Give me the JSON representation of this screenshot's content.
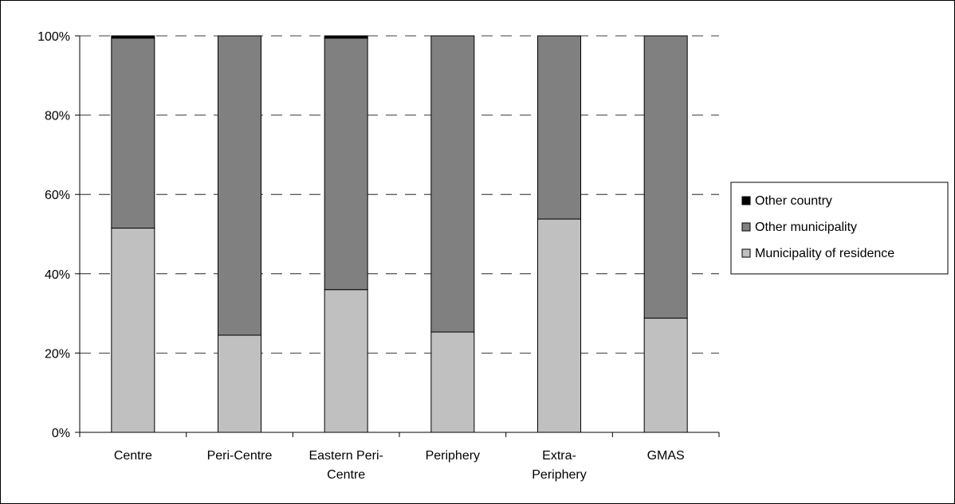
{
  "chart_data": {
    "type": "bar",
    "stacked": true,
    "normalized": true,
    "categories": [
      "Centre",
      "Peri-Centre",
      "Eastern Peri-Centre",
      "Periphery",
      "Extra-Periphery",
      "GMAS"
    ],
    "category_lines": [
      [
        "Centre"
      ],
      [
        "Peri-Centre"
      ],
      [
        "Eastern Peri-",
        "Centre"
      ],
      [
        "Periphery"
      ],
      [
        "Extra-",
        "Periphery"
      ],
      [
        "GMAS"
      ]
    ],
    "series": [
      {
        "name": "Municipality of residence",
        "color": "#c0c0c0",
        "values": [
          51.5,
          24.5,
          36.0,
          25.3,
          53.8,
          28.8
        ]
      },
      {
        "name": "Other municipality",
        "color": "#808080",
        "values": [
          47.9,
          75.5,
          63.4,
          74.7,
          46.2,
          71.2
        ]
      },
      {
        "name": "Other country",
        "color": "#000000",
        "values": [
          0.6,
          0.0,
          0.6,
          0.0,
          0.0,
          0.0
        ]
      }
    ],
    "legend_order": [
      "Other country",
      "Other municipality",
      "Municipality of residence"
    ],
    "y_ticks": [
      "0%",
      "20%",
      "40%",
      "60%",
      "80%",
      "100%"
    ],
    "ylim": [
      0,
      100
    ],
    "grid": true,
    "legend_position": "right"
  }
}
